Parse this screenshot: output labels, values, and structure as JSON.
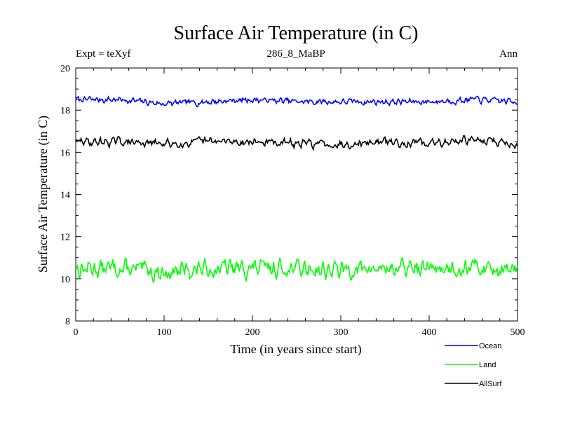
{
  "chart_data": {
    "type": "line",
    "title": "Surface Air Temperature (in C)",
    "subtitle_left": "Expt = teXyf",
    "subtitle_center": "286_8_MaBP",
    "subtitle_right": "Ann",
    "xlabel": "Time (in years since start)",
    "ylabel": "Surface Air Temperature (in C)",
    "xlim": [
      0,
      500
    ],
    "ylim": [
      8,
      20
    ],
    "xticks": [
      0,
      100,
      200,
      300,
      400,
      500
    ],
    "yticks": [
      8,
      10,
      12,
      14,
      16,
      18,
      20
    ],
    "grid": false,
    "legend_position": "bottom-right, outside plot",
    "series": [
      {
        "name": "Ocean",
        "color": "#0000ff",
        "mean": 18.45,
        "amplitude": 0.13,
        "x": [
          0,
          50,
          100,
          150,
          200,
          250,
          300,
          350,
          400,
          450,
          500
        ],
        "values": [
          18.5,
          18.5,
          18.3,
          18.4,
          18.5,
          18.4,
          18.4,
          18.4,
          18.4,
          18.5,
          18.4
        ]
      },
      {
        "name": "Land",
        "color": "#00ff00",
        "mean": 10.45,
        "amplitude": 0.35,
        "x": [
          0,
          50,
          100,
          150,
          200,
          250,
          300,
          350,
          400,
          450,
          500
        ],
        "values": [
          10.5,
          10.5,
          10.3,
          10.5,
          10.5,
          10.5,
          10.4,
          10.5,
          10.5,
          10.6,
          10.4
        ]
      },
      {
        "name": "AllSurf",
        "color": "#000000",
        "mean": 16.45,
        "amplitude": 0.17,
        "x": [
          0,
          50,
          100,
          150,
          200,
          250,
          300,
          350,
          400,
          450,
          500
        ],
        "values": [
          16.5,
          16.5,
          16.4,
          16.5,
          16.5,
          16.4,
          16.4,
          16.5,
          16.4,
          16.6,
          16.4
        ]
      }
    ]
  }
}
